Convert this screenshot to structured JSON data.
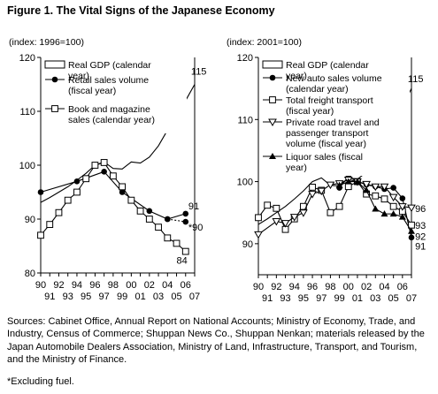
{
  "figure_title": "Figure 1. The Vital Signs of the Japanese Economy",
  "sources": "Sources: Cabinet Office, Annual Report on National Accounts; Ministry of Economy, Trade, and Industry, Census of Commerce; Shuppan News Co., Shuppan Nenkan; materials released by the Japan Automobile Dealers Association, Ministry of Land, Infrastructure, Transport, and Tourism, and the Ministry of Finance.",
  "footnote": "*Excluding fuel.",
  "chart_data": [
    {
      "type": "line",
      "index_label": "(index: 1996=100)",
      "ylim": [
        80,
        120
      ],
      "yticks": [
        80,
        90,
        100,
        110,
        120
      ],
      "xlim": [
        1990,
        2007
      ],
      "xtick_labels_top": [
        "90",
        "92",
        "94",
        "96",
        "98",
        "00",
        "02",
        "04",
        "06"
      ],
      "xtick_labels_bottom": [
        "91",
        "93",
        "95",
        "97",
        "99",
        "01",
        "03",
        "05",
        "07"
      ],
      "legend_position": "top-left",
      "series": [
        {
          "name": "Real GDP (calendar year)",
          "marker": "none",
          "x": [
            1990,
            1991,
            1992,
            1993,
            1994,
            1995,
            1996,
            1997,
            1998,
            1999,
            2000,
            2001,
            2002,
            2003,
            2004,
            2005,
            2006,
            2007
          ],
          "y": [
            93.1,
            94.0,
            95.0,
            96.0,
            97.2,
            98.5,
            100,
            100.6,
            99.4,
            99.3,
            100.6,
            100.4,
            101.5,
            103.6,
            106.5,
            109.0,
            112.0,
            115.0
          ]
        },
        {
          "name": "Retail sales volume (fiscal year)",
          "marker": "filled-circle",
          "x": [
            1990,
            1994,
            1997,
            1999,
            2002,
            2004,
            2006
          ],
          "y": [
            95,
            97,
            98.8,
            95,
            91.5,
            90,
            91
          ]
        },
        {
          "name": "Book and magazine sales (calendar year)",
          "marker": "open-square",
          "x": [
            1990,
            1991,
            1992,
            1993,
            1994,
            1995,
            1996,
            1997,
            1998,
            1999,
            2000,
            2001,
            2002,
            2003,
            2004,
            2005,
            2006
          ],
          "y": [
            87,
            89,
            91.2,
            93.5,
            95,
            97.5,
            100,
            100.5,
            98,
            96,
            93.5,
            91.5,
            90,
            88.5,
            86.5,
            85.5,
            84
          ]
        },
        {
          "name": "",
          "marker": "filled-circle",
          "dashed": true,
          "x": [
            2004,
            2006
          ],
          "y": [
            90,
            89.5
          ]
        }
      ],
      "annotations": [
        {
          "text": "115",
          "x": 2006.6,
          "y": 117.5
        },
        {
          "text": "91",
          "x": 2006.3,
          "y": 92.5
        },
        {
          "text": "*90",
          "x": 2006.3,
          "y": 88.5
        },
        {
          "text": "84",
          "x": 2005.0,
          "y": 82.4
        }
      ]
    },
    {
      "type": "line",
      "index_label": "(index: 2001=100)",
      "ylim": [
        85,
        120
      ],
      "yticks": [
        90,
        100,
        110,
        120
      ],
      "xlim": [
        1990,
        2007
      ],
      "xtick_labels_top": [
        "90",
        "92",
        "94",
        "96",
        "98",
        "00",
        "02",
        "04",
        "06"
      ],
      "xtick_labels_bottom": [
        "91",
        "93",
        "95",
        "97",
        "99",
        "01",
        "03",
        "05",
        "07"
      ],
      "legend_position": "top-left",
      "series": [
        {
          "name": "Real GDP (calendar year)",
          "marker": "none",
          "x": [
            1990,
            1991,
            1992,
            1993,
            1994,
            1995,
            1996,
            1997,
            1998,
            1999,
            2000,
            2001,
            2002,
            2003,
            2004,
            2005,
            2006,
            2007
          ],
          "y": [
            93.1,
            94.0,
            95.0,
            96.0,
            97.2,
            98.5,
            100,
            100.6,
            99.4,
            99.3,
            100.6,
            100.4,
            101.5,
            103.6,
            106.5,
            109.0,
            112.0,
            115.0
          ]
        },
        {
          "name": "New auto sales volume (calendar year)",
          "marker": "filled-circle",
          "x": [
            1999,
            2000,
            2001,
            2002,
            2003,
            2004,
            2005,
            2006,
            2007
          ],
          "y": [
            99,
            100.8,
            100,
            99.5,
            99.2,
            98.8,
            99,
            97.3,
            91
          ]
        },
        {
          "name": "Total freight transport (fiscal year)",
          "marker": "open-square",
          "x": [
            1990,
            1991,
            1992,
            1993,
            1994,
            1995,
            1996,
            1997,
            1998,
            1999,
            2000,
            2001,
            2002,
            2003,
            2004,
            2005,
            2006,
            2007
          ],
          "y": [
            94.2,
            96.2,
            95.7,
            92.3,
            94,
            96,
            99.1,
            98.6,
            95,
            96,
            99.2,
            100,
            98,
            97.7,
            97.2,
            96,
            95.2,
            93
          ]
        },
        {
          "name": "Private road travel and passenger transport volume (fiscal year)",
          "marker": "open-triangle-down",
          "x": [
            1990,
            1992,
            1993,
            1994,
            1995,
            1996,
            1997,
            1998,
            1999,
            2000,
            2001,
            2002,
            2003,
            2004,
            2005,
            2006,
            2007
          ],
          "y": [
            91.5,
            93.6,
            93.3,
            94.3,
            95,
            98,
            98.5,
            99.5,
            99.7,
            100.3,
            100,
            99.6,
            99.2,
            99.2,
            97.5,
            96,
            95.8
          ]
        },
        {
          "name": "Liquor sales (fiscal year)",
          "marker": "filled-triangle-up",
          "x": [
            1999,
            2000,
            2001,
            2002,
            2003,
            2004,
            2005,
            2006,
            2007
          ],
          "y": [
            99.4,
            100,
            100,
            98.6,
            95.6,
            94.8,
            94.8,
            94.3,
            92
          ]
        }
      ],
      "annotations": [
        {
          "text": "115",
          "x": 2006.6,
          "y": 116.6
        },
        {
          "text": "96",
          "x": 2007.4,
          "y": 95.7
        },
        {
          "text": "93",
          "x": 2007.4,
          "y": 93
        },
        {
          "text": "92",
          "x": 2007.4,
          "y": 91.2
        },
        {
          "text": "91",
          "x": 2007.4,
          "y": 89.6
        }
      ]
    }
  ]
}
